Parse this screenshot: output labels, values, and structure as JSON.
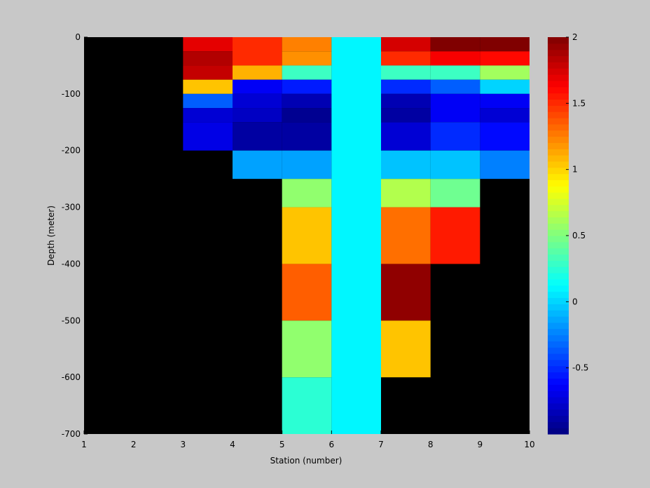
{
  "chart_data": {
    "type": "heatmap",
    "title": "",
    "xlabel": "Station (number)",
    "ylabel": "Depth (meter)",
    "xlim": [
      1,
      10
    ],
    "ylim": [
      -700,
      0
    ],
    "xticks": [
      "1",
      "2",
      "3",
      "4",
      "5",
      "6",
      "7",
      "8",
      "9",
      "10"
    ],
    "yticks": [
      "0",
      "-100",
      "-200",
      "-300",
      "-400",
      "-500",
      "-600",
      "-700"
    ],
    "background_color": "#000000",
    "colorbar": {
      "colormap": "jet",
      "clim": [
        -1,
        2
      ],
      "ticks": [
        "2",
        "1.5",
        "1",
        "0.5",
        "0",
        "-0.5"
      ]
    },
    "cells": [
      {
        "x": [
          3,
          4
        ],
        "y": [
          0,
          -25
        ],
        "value": 1.7
      },
      {
        "x": [
          3,
          4
        ],
        "y": [
          -25,
          -50
        ],
        "value": 1.85
      },
      {
        "x": [
          3,
          4
        ],
        "y": [
          -50,
          -75
        ],
        "value": 1.8
      },
      {
        "x": [
          3,
          4
        ],
        "y": [
          -75,
          -100
        ],
        "value": 1.05
      },
      {
        "x": [
          3,
          4
        ],
        "y": [
          -100,
          -125
        ],
        "value": -0.35
      },
      {
        "x": [
          3,
          4
        ],
        "y": [
          -125,
          -150
        ],
        "value": -0.75
      },
      {
        "x": [
          3,
          4
        ],
        "y": [
          -150,
          -200
        ],
        "value": -0.7
      },
      {
        "x": [
          4,
          5
        ],
        "y": [
          0,
          -50
        ],
        "value": 1.5
      },
      {
        "x": [
          4,
          5
        ],
        "y": [
          -50,
          -75
        ],
        "value": 1.1
      },
      {
        "x": [
          4,
          5
        ],
        "y": [
          -75,
          -100
        ],
        "value": -0.65
      },
      {
        "x": [
          4,
          5
        ],
        "y": [
          -100,
          -125
        ],
        "value": -0.75
      },
      {
        "x": [
          4,
          5
        ],
        "y": [
          -125,
          -150
        ],
        "value": -0.8
      },
      {
        "x": [
          4,
          5
        ],
        "y": [
          -150,
          -200
        ],
        "value": -0.9
      },
      {
        "x": [
          4,
          5
        ],
        "y": [
          -200,
          -250
        ],
        "value": -0.15
      },
      {
        "x": [
          5,
          6
        ],
        "y": [
          0,
          -25
        ],
        "value": 1.25
      },
      {
        "x": [
          5,
          6
        ],
        "y": [
          -25,
          -50
        ],
        "value": 1.2
      },
      {
        "x": [
          5,
          6
        ],
        "y": [
          -50,
          -75
        ],
        "value": 0.3
      },
      {
        "x": [
          5,
          6
        ],
        "y": [
          -75,
          -100
        ],
        "value": -0.55
      },
      {
        "x": [
          5,
          6
        ],
        "y": [
          -100,
          -125
        ],
        "value": -0.85
      },
      {
        "x": [
          5,
          6
        ],
        "y": [
          -125,
          -150
        ],
        "value": -0.95
      },
      {
        "x": [
          5,
          6
        ],
        "y": [
          -150,
          -200
        ],
        "value": -0.9
      },
      {
        "x": [
          5,
          6
        ],
        "y": [
          -200,
          -250
        ],
        "value": -0.15
      },
      {
        "x": [
          5,
          6
        ],
        "y": [
          -250,
          -300
        ],
        "value": 0.55
      },
      {
        "x": [
          5,
          6
        ],
        "y": [
          -300,
          -400
        ],
        "value": 1.05
      },
      {
        "x": [
          5,
          6
        ],
        "y": [
          -400,
          -500
        ],
        "value": 1.35
      },
      {
        "x": [
          5,
          6
        ],
        "y": [
          -500,
          -600
        ],
        "value": 0.55
      },
      {
        "x": [
          5,
          6
        ],
        "y": [
          -600,
          -700
        ],
        "value": 0.25
      },
      {
        "x": [
          6,
          7
        ],
        "y": [
          0,
          -700
        ],
        "value": 0.1
      },
      {
        "x": [
          7,
          8
        ],
        "y": [
          0,
          -25
        ],
        "value": 1.75
      },
      {
        "x": [
          7,
          8
        ],
        "y": [
          -25,
          -50
        ],
        "value": 1.5
      },
      {
        "x": [
          7,
          8
        ],
        "y": [
          -50,
          -75
        ],
        "value": 0.3
      },
      {
        "x": [
          7,
          8
        ],
        "y": [
          -75,
          -100
        ],
        "value": -0.5
      },
      {
        "x": [
          7,
          8
        ],
        "y": [
          -100,
          -125
        ],
        "value": -0.85
      },
      {
        "x": [
          7,
          8
        ],
        "y": [
          -125,
          -150
        ],
        "value": -0.9
      },
      {
        "x": [
          7,
          8
        ],
        "y": [
          -150,
          -200
        ],
        "value": -0.75
      },
      {
        "x": [
          7,
          8
        ],
        "y": [
          -200,
          -250
        ],
        "value": -0.05
      },
      {
        "x": [
          7,
          8
        ],
        "y": [
          -250,
          -300
        ],
        "value": 0.65
      },
      {
        "x": [
          7,
          8
        ],
        "y": [
          -300,
          -400
        ],
        "value": 1.3
      },
      {
        "x": [
          7,
          8
        ],
        "y": [
          -400,
          -500
        ],
        "value": 1.95
      },
      {
        "x": [
          7,
          8
        ],
        "y": [
          -500,
          -600
        ],
        "value": 1.05
      },
      {
        "x": [
          8,
          9
        ],
        "y": [
          0,
          -25
        ],
        "value": 2.0
      },
      {
        "x": [
          8,
          9
        ],
        "y": [
          -25,
          -50
        ],
        "value": 1.65
      },
      {
        "x": [
          8,
          9
        ],
        "y": [
          -50,
          -75
        ],
        "value": 0.3
      },
      {
        "x": [
          8,
          9
        ],
        "y": [
          -75,
          -100
        ],
        "value": -0.35
      },
      {
        "x": [
          8,
          9
        ],
        "y": [
          -100,
          -150
        ],
        "value": -0.65
      },
      {
        "x": [
          8,
          9
        ],
        "y": [
          -150,
          -200
        ],
        "value": -0.5
      },
      {
        "x": [
          8,
          9
        ],
        "y": [
          -200,
          -250
        ],
        "value": -0.05
      },
      {
        "x": [
          8,
          9
        ],
        "y": [
          -250,
          -300
        ],
        "value": 0.45
      },
      {
        "x": [
          8,
          9
        ],
        "y": [
          -300,
          -400
        ],
        "value": 1.55
      },
      {
        "x": [
          9,
          10
        ],
        "y": [
          0,
          -25
        ],
        "value": 2.0
      },
      {
        "x": [
          9,
          10
        ],
        "y": [
          -25,
          -50
        ],
        "value": 1.6
      },
      {
        "x": [
          9,
          10
        ],
        "y": [
          -50,
          -75
        ],
        "value": 0.6
      },
      {
        "x": [
          9,
          10
        ],
        "y": [
          -75,
          -100
        ],
        "value": 0.0
      },
      {
        "x": [
          9,
          10
        ],
        "y": [
          -100,
          -125
        ],
        "value": -0.65
      },
      {
        "x": [
          9,
          10
        ],
        "y": [
          -125,
          -150
        ],
        "value": -0.75
      },
      {
        "x": [
          9,
          10
        ],
        "y": [
          -150,
          -200
        ],
        "value": -0.6
      },
      {
        "x": [
          9,
          10
        ],
        "y": [
          -200,
          -250
        ],
        "value": -0.25
      }
    ]
  }
}
